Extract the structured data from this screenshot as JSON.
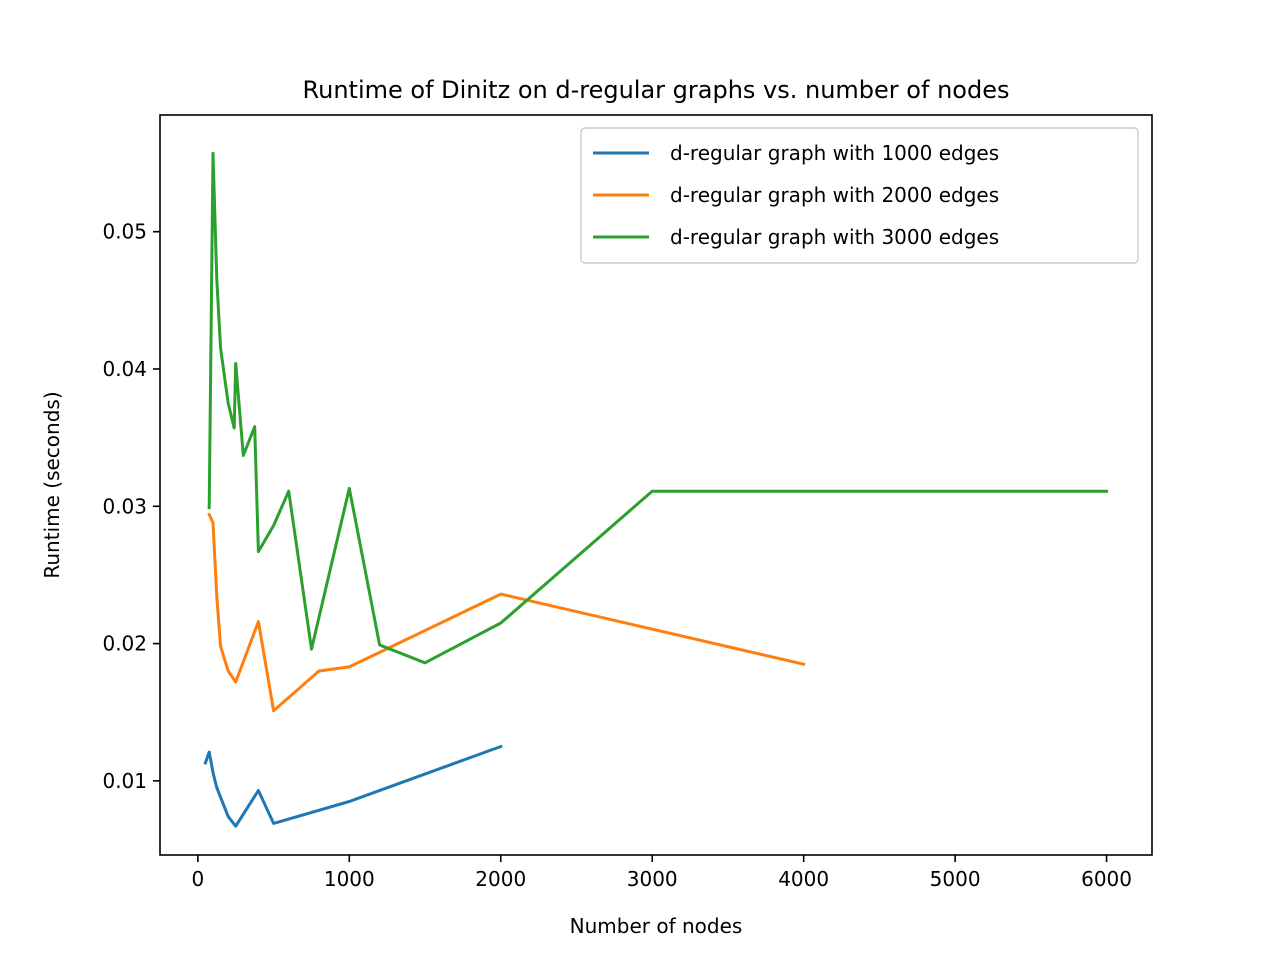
{
  "chart_data": {
    "type": "line",
    "title": "Runtime of Dinitz on d-regular graphs vs. number of nodes",
    "xlabel": "Number of nodes",
    "ylabel": "Runtime (seconds)",
    "xlim": [
      -250,
      6300
    ],
    "ylim": [
      0.0046,
      0.0585
    ],
    "xticks": [
      0,
      1000,
      2000,
      3000,
      4000,
      5000,
      6000
    ],
    "xtick_labels": [
      "0",
      "1000",
      "2000",
      "3000",
      "4000",
      "5000",
      "6000"
    ],
    "yticks": [
      0.01,
      0.02,
      0.03,
      0.04,
      0.05
    ],
    "ytick_labels": [
      "0.01",
      "0.02",
      "0.03",
      "0.04",
      "0.05"
    ],
    "grid": false,
    "legend_position": "top-right",
    "series": [
      {
        "name": "d-regular graph with 1000 edges",
        "color": "#1f77b4",
        "x": [
          50,
          75,
          100,
          125,
          200,
          250,
          400,
          500,
          1000,
          2000
        ],
        "y": [
          0.0113,
          0.0121,
          0.0106,
          0.0095,
          0.0074,
          0.0067,
          0.0093,
          0.0069,
          0.0085,
          0.0125
        ]
      },
      {
        "name": "d-regular graph with 2000 edges",
        "color": "#ff7f0e",
        "x": [
          75,
          100,
          125,
          150,
          200,
          250,
          400,
          500,
          800,
          1000,
          2000,
          4000
        ],
        "y": [
          0.0294,
          0.0288,
          0.0234,
          0.0198,
          0.018,
          0.0172,
          0.0216,
          0.0151,
          0.018,
          0.0183,
          0.0236,
          0.0185
        ]
      },
      {
        "name": "d-regular graph with 3000 edges",
        "color": "#2ca02c",
        "x": [
          75,
          100,
          125,
          150,
          200,
          240,
          250,
          300,
          375,
          400,
          500,
          600,
          750,
          1000,
          1200,
          1500,
          2000,
          3000,
          6000
        ],
        "y": [
          0.0299,
          0.0557,
          0.0465,
          0.0415,
          0.0375,
          0.0357,
          0.0404,
          0.0337,
          0.0358,
          0.0267,
          0.0286,
          0.0311,
          0.0196,
          0.0313,
          0.0199,
          0.0186,
          0.0215,
          0.0311,
          0.0311
        ]
      }
    ]
  }
}
